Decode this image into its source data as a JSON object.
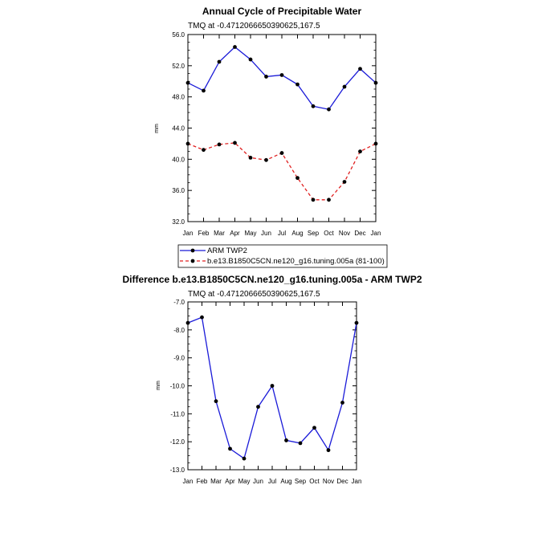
{
  "colors": {
    "obs": "#1a1ad8",
    "model": "#e02020",
    "diff": "#1a1ad8",
    "marker": "#000000"
  },
  "chart_data": [
    {
      "type": "line",
      "title": "Annual Cycle of Precipitable Water",
      "subtitle": "TMQ at -0.4712066650390625,167.5",
      "ylabel": "mm",
      "ylim": [
        32.0,
        56.0
      ],
      "yticks": [
        "32.0",
        "36.0",
        "40.0",
        "44.0",
        "48.0",
        "52.0",
        "56.0"
      ],
      "categories": [
        "Jan",
        "Feb",
        "Mar",
        "Apr",
        "May",
        "Jun",
        "Jul",
        "Aug",
        "Sep",
        "Oct",
        "Nov",
        "Dec",
        "Jan"
      ],
      "series": [
        {
          "name": "ARM TWP2",
          "style": "solid",
          "values": [
            49.8,
            48.8,
            52.5,
            54.4,
            52.8,
            50.6,
            50.8,
            49.6,
            46.8,
            46.4,
            49.3,
            51.6,
            49.8
          ]
        },
        {
          "name": "b.e13.B1850C5CN.ne120_g16.tuning.005a (81-100)",
          "style": "dashed",
          "values": [
            42.0,
            41.2,
            41.9,
            42.1,
            40.2,
            39.9,
            40.8,
            37.6,
            34.8,
            34.8,
            37.1,
            41.0,
            42.0
          ]
        }
      ],
      "legend": [
        "ARM TWP2",
        "b.e13.B1850C5CN.ne120_g16.tuning.005a (81-100)"
      ]
    },
    {
      "type": "line",
      "title": "Difference b.e13.B1850C5CN.ne120_g16.tuning.005a - ARM TWP2",
      "subtitle": "TMQ at -0.4712066650390625,167.5",
      "ylabel": "mm",
      "ylim": [
        -13.0,
        -7.0
      ],
      "yticks": [
        "-13.0",
        "-12.0",
        "-11.0",
        "-10.0",
        "-9.0",
        "-8.0",
        "-7.0"
      ],
      "categories": [
        "Jan",
        "Feb",
        "Mar",
        "Apr",
        "May",
        "Jun",
        "Jul",
        "Aug",
        "Sep",
        "Oct",
        "Nov",
        "Dec",
        "Jan"
      ],
      "series": [
        {
          "name": "Difference",
          "style": "solid",
          "values": [
            -7.75,
            -7.55,
            -10.55,
            -12.25,
            -12.6,
            -10.75,
            -10.0,
            -11.95,
            -12.05,
            -11.5,
            -12.3,
            -10.6,
            -7.75
          ]
        }
      ]
    }
  ]
}
